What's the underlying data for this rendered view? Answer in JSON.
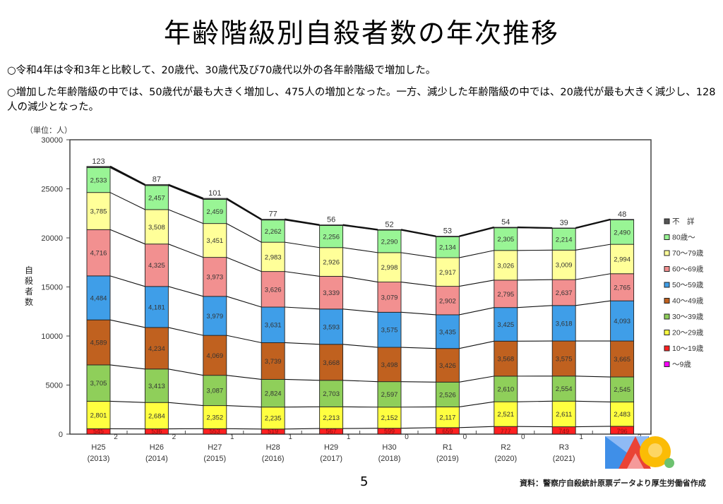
{
  "page": {
    "title": "年齢階級別自殺者数の年次推移",
    "bullets": [
      "○令和4年は令和3年と比較して、20歳代、30歳代及び70歳代以外の各年齢階級で増加した。",
      "○増加した年齢階級の中では、50歳代が最も大きく増加し、475人の増加となった。一方、減少した年齢階級の中では、20歳代が最も大きく減少し、128人の減少となった。"
    ],
    "unit_label": "（単位：人）",
    "page_number": "5",
    "source": "資料：警察庁自殺統計原票データより厚生労働省作成"
  },
  "chart_data": {
    "type": "bar",
    "stacked": true,
    "title": "年齢階級別自殺者数の年次推移",
    "xlabel": "",
    "ylabel": "自殺者数",
    "ylim": [
      0,
      30000
    ],
    "yticks": [
      0,
      5000,
      10000,
      15000,
      20000,
      25000,
      30000
    ],
    "grid": false,
    "legend_position": "right",
    "categories": [
      [
        "H25",
        "(2013)"
      ],
      [
        "H26",
        "(2014)"
      ],
      [
        "H27",
        "(2015)"
      ],
      [
        "H28",
        "(2016)"
      ],
      [
        "H29",
        "(2017)"
      ],
      [
        "H30",
        "(2018)"
      ],
      [
        "R1",
        "(2019)"
      ],
      [
        "R2",
        "(2020)"
      ],
      [
        "R3",
        "(2021)"
      ],
      [
        "",
        ""
      ]
    ],
    "series": [
      {
        "name": "〜9歳",
        "color": "#ff00ff",
        "values": [
          2,
          2,
          1,
          1,
          1,
          0,
          0,
          0,
          1,
          2
        ]
      },
      {
        "name": "10〜19歳",
        "color": "#ff2020",
        "values": [
          545,
          536,
          553,
          519,
          567,
          599,
          659,
          777,
          749,
          796
        ]
      },
      {
        "name": "20〜29歳",
        "color": "#ffff40",
        "values": [
          2801,
          2684,
          2352,
          2235,
          2213,
          2152,
          2117,
          2521,
          2611,
          2483
        ]
      },
      {
        "name": "30〜39歳",
        "color": "#8fcf5a",
        "values": [
          3705,
          3413,
          3087,
          2824,
          2703,
          2597,
          2526,
          2610,
          2554,
          2545
        ]
      },
      {
        "name": "40〜49歳",
        "color": "#c0611f",
        "values": [
          4589,
          4234,
          4069,
          3739,
          3668,
          3498,
          3426,
          3568,
          3575,
          3665
        ]
      },
      {
        "name": "50〜59歳",
        "color": "#3f9ee8",
        "values": [
          4484,
          4181,
          3979,
          3631,
          3593,
          3575,
          3435,
          3425,
          3618,
          4093
        ]
      },
      {
        "name": "60〜69歳",
        "color": "#f29090",
        "values": [
          4716,
          4325,
          3973,
          3626,
          3339,
          3079,
          2902,
          2795,
          2637,
          2765
        ]
      },
      {
        "name": "70〜79歳",
        "color": "#ffff99",
        "values": [
          3785,
          3508,
          3451,
          2983,
          2926,
          2998,
          2917,
          3026,
          3009,
          2994
        ]
      },
      {
        "name": "80歳〜",
        "color": "#99f595",
        "values": [
          2533,
          2457,
          2459,
          2262,
          2256,
          2290,
          2134,
          2305,
          2214,
          2490
        ]
      },
      {
        "name": "不　詳",
        "color": "#555555",
        "values": [
          123,
          87,
          101,
          77,
          56,
          52,
          53,
          54,
          39,
          48
        ]
      }
    ],
    "legend_order": [
      "不　詳",
      "80歳〜",
      "70〜79歳",
      "60〜69歳",
      "50〜59歳",
      "40〜49歳",
      "30〜39歳",
      "20〜29歳",
      "10〜19歳",
      "〜9歳"
    ]
  }
}
